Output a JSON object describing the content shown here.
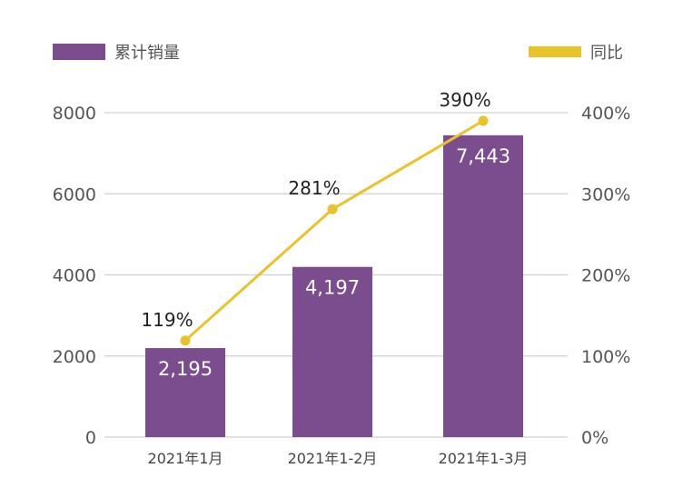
{
  "chart_data": {
    "type": "bar",
    "title": "",
    "categories": [
      "2021年1月",
      "2021年1-2月",
      "2021年1-3月"
    ],
    "series": [
      {
        "name": "累计销量",
        "type": "bar",
        "axis": "left",
        "values": [
          2195,
          4197,
          7443
        ],
        "value_labels": [
          "2,195",
          "4,197",
          "7,443"
        ]
      },
      {
        "name": "同比",
        "type": "line",
        "axis": "right",
        "values": [
          119,
          281,
          390
        ],
        "value_labels": [
          "119%",
          "281%",
          "390%"
        ]
      }
    ],
    "y_left": {
      "range": [
        0,
        8000
      ],
      "ticks": [
        "0",
        "2000",
        "4000",
        "6000",
        "8000"
      ]
    },
    "y_right": {
      "range": [
        0,
        400
      ],
      "unit": "%",
      "ticks": [
        "0%",
        "100%",
        "200%",
        "300%",
        "400%"
      ]
    },
    "grid": true,
    "legend": {
      "placement": "top",
      "entries": [
        "累计销量",
        "同比"
      ]
    },
    "colors": {
      "bar": "#7b4d8e",
      "line": "#e8c42a",
      "grid": "#cfcfcf",
      "axis_text": "#555555",
      "label_dark": "#222222",
      "label_light": "#ffffff"
    }
  }
}
